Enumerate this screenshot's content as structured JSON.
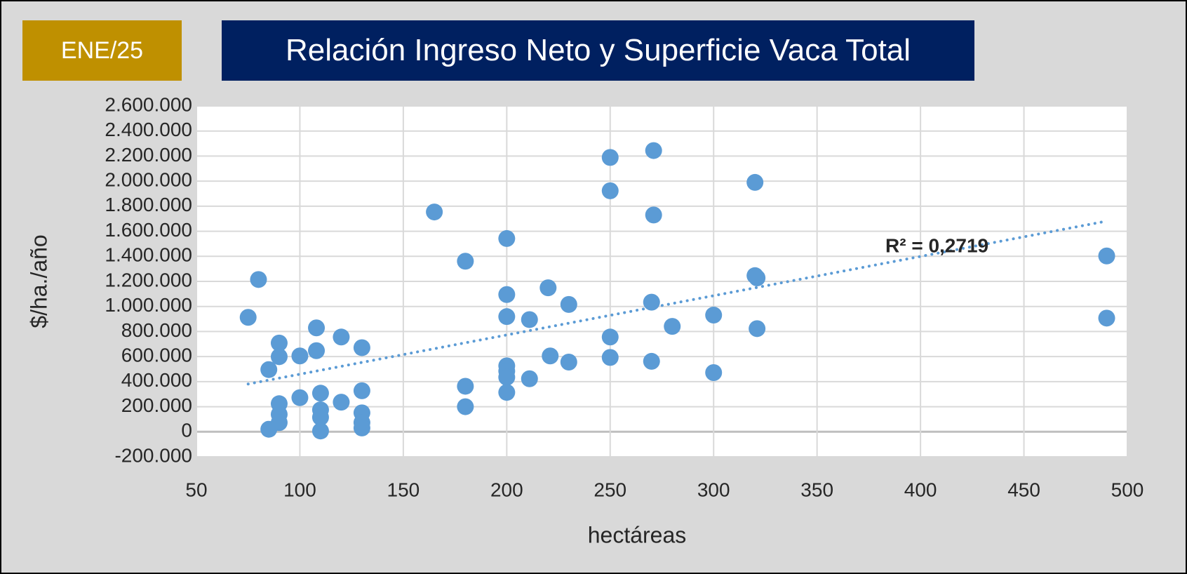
{
  "header": {
    "period": "ENE/25"
  },
  "chart_data": {
    "type": "scatter",
    "title": "Relación Ingreso Neto y Superficie Vaca Total",
    "x_label": "hectáreas",
    "y_label": "$/ha./año",
    "xlim": [
      50,
      500
    ],
    "xticks": [
      50,
      100,
      150,
      200,
      250,
      300,
      350,
      400,
      450,
      500
    ],
    "ylim": [
      -200000,
      2600000
    ],
    "yticks": [
      {
        "value": -200000,
        "label": "-200.000"
      },
      0,
      {
        "value": 200000,
        "label": "200.000"
      },
      {
        "value": 400000,
        "label": "400.000"
      },
      {
        "value": 600000,
        "label": "600.000"
      },
      {
        "value": 800000,
        "label": "800.000"
      },
      {
        "value": 1000000,
        "label": "1.000.000"
      },
      {
        "value": 1200000,
        "label": "1.200.000"
      },
      {
        "value": 1400000,
        "label": "1.400.000"
      },
      {
        "value": 1600000,
        "label": "1.600.000"
      },
      {
        "value": 1800000,
        "label": "1.800.000"
      },
      {
        "value": 2000000,
        "label": "2.000.000"
      },
      {
        "value": 2200000,
        "label": "2.200.000"
      },
      {
        "value": 2400000,
        "label": "2.400.000"
      },
      {
        "value": 2600000,
        "label": "2.600.000"
      }
    ],
    "grid": true,
    "color": "#5b9bd5",
    "x": [
      75,
      80,
      85,
      85,
      90,
      90,
      90,
      90,
      90,
      100,
      100,
      108,
      108,
      110,
      110,
      110,
      110,
      120,
      120,
      130,
      130,
      130,
      130,
      130,
      165,
      180,
      180,
      180,
      200,
      200,
      200,
      200,
      200,
      200,
      200,
      211,
      211,
      220,
      221,
      230,
      230,
      250,
      250,
      250,
      250,
      271,
      271,
      270,
      270,
      280,
      300,
      300,
      320,
      320,
      321,
      321,
      490,
      490
    ],
    "values": [
      913000,
      1215000,
      496000,
      20000,
      708000,
      599000,
      224000,
      139000,
      73000,
      605000,
      272000,
      829000,
      647000,
      308000,
      175000,
      115000,
      6000,
      756000,
      236000,
      671000,
      327000,
      151000,
      73000,
      30000,
      1754000,
      1361000,
      363000,
      200000,
      1542000,
      1095000,
      919000,
      526000,
      484000,
      435000,
      314000,
      895000,
      423000,
      1149000,
      605000,
      1016000,
      556000,
      2189000,
      1923000,
      756000,
      593000,
      2244000,
      1730000,
      1034000,
      562000,
      841000,
      931000,
      472000,
      1990000,
      1246000,
      1228000,
      823000,
      1403000,
      907000
    ],
    "trendline": {
      "x": [
        75,
        490
      ],
      "values": [
        381000,
        1681000
      ]
    },
    "annotation": "R² = 0,2719"
  }
}
